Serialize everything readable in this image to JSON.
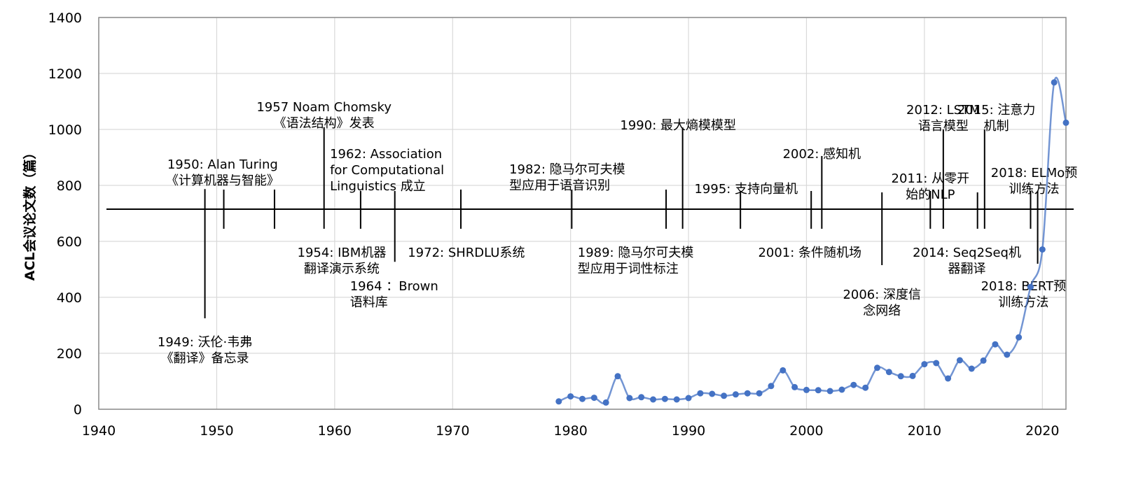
{
  "chart_data": {
    "type": "line",
    "title": "",
    "xlabel": "",
    "ylabel": "ACL会议论文数（篇）",
    "xlim": [
      1940,
      2022
    ],
    "ylim": [
      0,
      1400
    ],
    "x_ticks": [
      "1940",
      "1950",
      "1960",
      "1970",
      "1980",
      "1990",
      "2000",
      "2010",
      "2020"
    ],
    "y_ticks": [
      "0",
      "200",
      "400",
      "600",
      "800",
      "1000",
      "1200",
      "1400"
    ],
    "grid": "vertical and horizontal gridlines",
    "timeline_y": 715,
    "series": [
      {
        "color": "#4472c4",
        "smooth": true,
        "x": [
          1979,
          1980,
          1981,
          1982,
          1983,
          1984,
          1985,
          1986,
          1987,
          1988,
          1989,
          1990,
          1991,
          1992,
          1993,
          1994,
          1995,
          1996,
          1997,
          1998,
          1999,
          2000,
          2001,
          2002,
          2003,
          2004,
          2005,
          2006,
          2007,
          2008,
          2009,
          2010,
          2011,
          2012,
          2013,
          2014,
          2015,
          2016,
          2017,
          2018,
          2019,
          2020,
          2021,
          2022
        ],
        "y": [
          28,
          46,
          37,
          41,
          24,
          118,
          40,
          43,
          35,
          37,
          35,
          40,
          57,
          55,
          48,
          53,
          57,
          57,
          83,
          139,
          79,
          69,
          68,
          65,
          70,
          87,
          77,
          148,
          133,
          118,
          119,
          161,
          165,
          110,
          175,
          145,
          174,
          232,
          195,
          257,
          437,
          571,
          1168,
          1024
        ]
      }
    ],
    "events": [
      {
        "year": 1949,
        "tick_top": 787,
        "tick_bottom": 325,
        "label": [
          "1949: 沃伦·韦弗",
          "《翻译》备忘录"
        ],
        "label_x": 1949,
        "label_y": 265,
        "anchor": "middle"
      },
      {
        "year": 1950.6,
        "tick_top": 785,
        "tick_bottom": 645,
        "label": [
          "1950: Alan Turing",
          "《计算机器与智能》"
        ],
        "label_x": 1950.5,
        "label_y": 900,
        "anchor": "middle"
      },
      {
        "year": 1954.9,
        "tick_top": 785,
        "tick_bottom": 645,
        "label": [
          "1954: IBM机器",
          "翻译演示系统"
        ],
        "label_x": 1960.6,
        "label_y": 585,
        "anchor": "middle"
      },
      {
        "year": 1959.1,
        "tick_top": 1008,
        "tick_bottom": 645,
        "label": [
          "1957 Noam Chomsky",
          "《语法结构》发表"
        ],
        "label_x": 1959.1,
        "label_y": 1105,
        "anchor": "middle"
      },
      {
        "year": 1962.2,
        "tick_top": 780,
        "tick_bottom": 645,
        "label": [
          "1962:   Association",
          "for  Computational",
          "Linguistics 成立"
        ],
        "label_x": 1959.6,
        "label_y": 937,
        "anchor": "start"
      },
      {
        "year": 1965.1,
        "tick_top": 780,
        "tick_bottom": 527,
        "label": [
          "1964 ：Brown",
          "语料库"
        ],
        "label_x": 1961.3,
        "label_y": 465,
        "anchor": "start"
      },
      {
        "year": 1970.7,
        "tick_top": 785,
        "tick_bottom": 645,
        "label": [
          "1972: SHRDLU系统"
        ],
        "label_x": 1966.2,
        "label_y": 585,
        "anchor": "start"
      },
      {
        "year": 1980.1,
        "tick_top": 785,
        "tick_bottom": 645,
        "label": [
          "1982: 隐马尔可夫模",
          "型应用于语音识别"
        ],
        "label_x": 1974.8,
        "label_y": 883,
        "anchor": "start"
      },
      {
        "year": 1988.1,
        "tick_top": 785,
        "tick_bottom": 645,
        "label": [],
        "label_x": 1988.1,
        "label_y": 0,
        "anchor": "middle"
      },
      {
        "year": 1989.5,
        "tick_top": 1007,
        "tick_bottom": 645,
        "label": [
          "1990: 最大熵模模型"
        ],
        "label_x": 1984.2,
        "label_y": 1040,
        "anchor": "start"
      },
      {
        "year": 1989.5,
        "tick_top": 0,
        "tick_bottom": 0,
        "label": [
          "1989: 隐马尔可夫模",
          "型应用于词性标注"
        ],
        "label_x": 1980.6,
        "label_y": 585,
        "anchor": "start"
      },
      {
        "year": 1994.4,
        "tick_top": 780,
        "tick_bottom": 645,
        "label": [
          "1995: 支持向量机"
        ],
        "label_x": 1990.5,
        "label_y": 812,
        "anchor": "start"
      },
      {
        "year": 2000.4,
        "tick_top": 780,
        "tick_bottom": 645,
        "label": [
          "2001: 条件随机场"
        ],
        "label_x": 1995.9,
        "label_y": 585,
        "anchor": "start"
      },
      {
        "year": 2001.3,
        "tick_top": 905,
        "tick_bottom": 645,
        "label": [
          "2002: 感知机"
        ],
        "label_x": 2001.3,
        "label_y": 937,
        "anchor": "middle"
      },
      {
        "year": 2006.4,
        "tick_top": 775,
        "tick_bottom": 515,
        "label": [
          "2006: 深度信",
          "念网络"
        ],
        "label_x": 2006.4,
        "label_y": 435,
        "anchor": "middle"
      },
      {
        "year": 2010.5,
        "tick_top": 780,
        "tick_bottom": 645,
        "label": [
          "2011: 从零开",
          "始的NLP"
        ],
        "label_x": 2010.5,
        "label_y": 850,
        "anchor": "middle"
      },
      {
        "year": 2011.6,
        "tick_top": 1000,
        "tick_bottom": 645,
        "label": [
          "2012: LSTM",
          "语言模型"
        ],
        "label_x": 2011.6,
        "label_y": 1095,
        "anchor": "middle"
      },
      {
        "year": 2014.5,
        "tick_top": 775,
        "tick_bottom": 645,
        "label": [
          "2014:  Seq2Seq机",
          "器翻译"
        ],
        "label_x": 2013.6,
        "label_y": 585,
        "anchor": "middle"
      },
      {
        "year": 2015.1,
        "tick_top": 1000,
        "tick_bottom": 645,
        "label": [
          "2015: 注意力",
          "机制"
        ],
        "label_x": 2016.1,
        "label_y": 1095,
        "anchor": "middle"
      },
      {
        "year": 2019.0,
        "tick_top": 780,
        "tick_bottom": 645,
        "label": [
          "2018: ELMo预",
          "训练方法"
        ],
        "label_x": 2019.3,
        "label_y": 870,
        "anchor": "middle"
      },
      {
        "year": 2019.6,
        "tick_top": 780,
        "tick_bottom": 520,
        "label": [
          "2018: BERT预",
          "训练方法"
        ],
        "label_x": 2018.4,
        "label_y": 465,
        "anchor": "middle"
      }
    ]
  }
}
